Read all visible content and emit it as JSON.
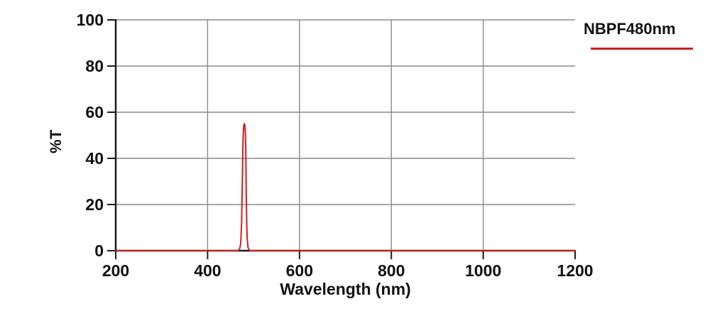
{
  "legend": {
    "label": "NBPF480nm"
  },
  "axes": {
    "y_label": "%T",
    "x_label": "Wavelength (nm)"
  },
  "colors": {
    "accent_red": "#cf1f1f",
    "grid": "#8a8a8a",
    "axis": "#1a1a1a",
    "text": "#111111",
    "background": "#ffffff"
  },
  "chart_data": {
    "type": "line",
    "title": "",
    "xlabel": "Wavelength (nm)",
    "ylabel": "%T",
    "xlim": [
      200,
      1200
    ],
    "ylim": [
      0,
      100
    ],
    "x_ticks": [
      200,
      400,
      600,
      800,
      1000,
      1200
    ],
    "y_ticks": [
      0,
      20,
      40,
      60,
      80,
      100
    ],
    "grid": true,
    "legend_position": "top-right",
    "series": [
      {
        "name": "NBPF480nm",
        "color": "#cf1f1f",
        "points": [
          [
            200,
            0
          ],
          [
            450,
            0
          ],
          [
            466,
            0
          ],
          [
            468,
            0.3
          ],
          [
            470,
            1
          ],
          [
            472,
            3
          ],
          [
            474,
            12
          ],
          [
            476,
            35
          ],
          [
            477,
            47
          ],
          [
            478,
            52
          ],
          [
            479,
            54.5
          ],
          [
            480,
            55
          ],
          [
            481,
            54.5
          ],
          [
            482,
            52
          ],
          [
            483,
            45
          ],
          [
            484,
            28
          ],
          [
            485,
            14
          ],
          [
            486,
            6
          ],
          [
            488,
            1.5
          ],
          [
            490,
            0.5
          ],
          [
            492,
            0
          ],
          [
            600,
            0
          ],
          [
            1200,
            0
          ]
        ]
      }
    ],
    "peak": {
      "wavelength_nm": 480,
      "transmission_pct": 55
    }
  }
}
